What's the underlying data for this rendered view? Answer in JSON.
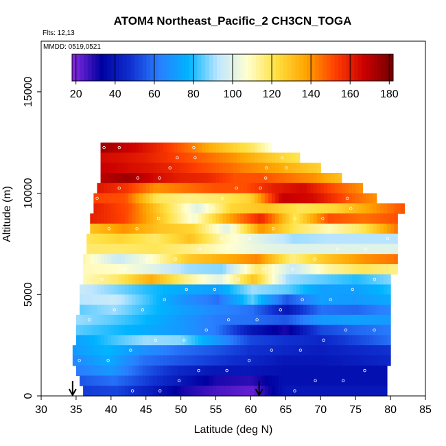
{
  "chart_data": {
    "type": "heatmap",
    "title": "ATOM4 Northeast_Pacific_2 CH3CN_TOGA",
    "flights_label": "Flts: 12,13",
    "dates_label": "MMDD: 0519,0521",
    "xlabel": "Latitude (deg N)",
    "ylabel": "Altitude (m)",
    "xlim": [
      30,
      85
    ],
    "ylim": [
      0,
      17500
    ],
    "x_ticks": [
      "30",
      "35",
      "40",
      "45",
      "50",
      "55",
      "60",
      "65",
      "70",
      "75",
      "80",
      "85"
    ],
    "y_ticks": [
      "0",
      "5000",
      "10000",
      "15000"
    ],
    "colorbar": {
      "range": [
        18,
        182
      ],
      "tick_labels": [
        "20",
        "40",
        "60",
        "80",
        "100",
        "120",
        "140",
        "160",
        "180"
      ],
      "colors": [
        "#8a2be2",
        "#0000a0",
        "#1030d0",
        "#2a7fff",
        "#00b4ff",
        "#bfe6ff",
        "#ffffd0",
        "#ffe040",
        "#ffa500",
        "#ff4000",
        "#cc0000",
        "#700000"
      ]
    },
    "arrows_lat": [
      34.5,
      61.2
    ],
    "layers": [
      {
        "alt": [
          12000,
          12500
        ],
        "lat": [
          38.5,
          63
        ],
        "values": [
          175,
          170,
          165,
          158,
          150,
          142,
          133,
          126,
          119,
          106
        ]
      },
      {
        "alt": [
          11500,
          12000
        ],
        "lat": [
          38.5,
          67
        ],
        "values": [
          165,
          163,
          160,
          155,
          150,
          145,
          140,
          133,
          126,
          120
        ]
      },
      {
        "alt": [
          11000,
          11500
        ],
        "lat": [
          38.5,
          70
        ],
        "values": [
          168,
          165,
          162,
          158,
          152,
          147,
          142,
          138,
          132,
          126
        ]
      },
      {
        "alt": [
          10500,
          11000
        ],
        "lat": [
          38.5,
          73
        ],
        "values": [
          170,
          175,
          165,
          160,
          158,
          150,
          150,
          145,
          140,
          130
        ]
      },
      {
        "alt": [
          10000,
          10500
        ],
        "lat": [
          38,
          76
        ],
        "values": [
          162,
          155,
          140,
          145,
          150,
          150,
          160,
          165,
          150,
          140
        ]
      },
      {
        "alt": [
          9500,
          10000
        ],
        "lat": [
          37.5,
          78
        ],
        "values": [
          152,
          150,
          120,
          115,
          118,
          126,
          168,
          165,
          150,
          140
        ]
      },
      {
        "alt": [
          9000,
          9500
        ],
        "lat": [
          37.5,
          82
        ],
        "values": [
          160,
          150,
          125,
          100,
          125,
          130,
          120,
          125,
          138,
          150
        ]
      },
      {
        "alt": [
          8500,
          9000
        ],
        "lat": [
          37,
          81
        ],
        "values": [
          160,
          152,
          130,
          105,
          135,
          158,
          120,
          150,
          145,
          150
        ]
      },
      {
        "alt": [
          8000,
          8500
        ],
        "lat": [
          37,
          81
        ],
        "values": [
          130,
          140,
          130,
          125,
          100,
          140,
          120,
          110,
          120,
          145
        ]
      },
      {
        "alt": [
          7500,
          8000
        ],
        "lat": [
          36.5,
          81
        ],
        "values": [
          120,
          125,
          118,
          130,
          110,
          100,
          90,
          92,
          92,
          92
        ]
      },
      {
        "alt": [
          7000,
          7500
        ],
        "lat": [
          36.5,
          81
        ],
        "values": [
          118,
          118,
          120,
          115,
          108,
          102,
          100,
          100,
          100,
          100
        ]
      },
      {
        "alt": [
          6500,
          7000
        ],
        "lat": [
          36,
          81
        ],
        "values": [
          112,
          95,
          108,
          128,
          135,
          142,
          115,
          130,
          140,
          145
        ]
      },
      {
        "alt": [
          6000,
          6500
        ],
        "lat": [
          36,
          81
        ],
        "values": [
          110,
          108,
          100,
          90,
          88,
          118,
          95,
          112,
          120,
          115
        ]
      },
      {
        "alt": [
          5500,
          6000
        ],
        "lat": [
          36,
          80
        ],
        "values": [
          110,
          118,
          135,
          115,
          100,
          130,
          90,
          85,
          80,
          88
        ]
      },
      {
        "alt": [
          5000,
          5500
        ],
        "lat": [
          35.5,
          80
        ],
        "values": [
          95,
          88,
          80,
          75,
          72,
          90,
          85,
          72,
          72,
          80
        ]
      },
      {
        "alt": [
          4500,
          5000
        ],
        "lat": [
          35.5,
          80
        ],
        "values": [
          92,
          95,
          82,
          68,
          60,
          85,
          55,
          72,
          70,
          75
        ]
      },
      {
        "alt": [
          4000,
          4500
        ],
        "lat": [
          35.5,
          80
        ],
        "values": [
          85,
          90,
          80,
          72,
          65,
          60,
          40,
          60,
          58,
          65
        ]
      },
      {
        "alt": [
          3500,
          4000
        ],
        "lat": [
          35,
          80
        ],
        "values": [
          90,
          85,
          78,
          70,
          62,
          60,
          55,
          70,
          72,
          70
        ]
      },
      {
        "alt": [
          3000,
          3500
        ],
        "lat": [
          35,
          80
        ],
        "values": [
          85,
          80,
          75,
          70,
          62,
          40,
          30,
          52,
          58,
          62
        ]
      },
      {
        "alt": [
          2500,
          3000
        ],
        "lat": [
          35,
          80
        ],
        "values": [
          72,
          82,
          90,
          88,
          70,
          52,
          48,
          45,
          52,
          60
        ]
      },
      {
        "alt": [
          2000,
          2500
        ],
        "lat": [
          34.5,
          80
        ],
        "values": [
          70,
          78,
          68,
          60,
          55,
          48,
          45,
          42,
          45,
          48
        ]
      },
      {
        "alt": [
          1500,
          2000
        ],
        "lat": [
          34.5,
          80
        ],
        "values": [
          65,
          75,
          60,
          55,
          50,
          45,
          40,
          40,
          42,
          45
        ]
      },
      {
        "alt": [
          1000,
          1500
        ],
        "lat": [
          35,
          79.5
        ],
        "values": [
          62,
          70,
          55,
          45,
          40,
          40,
          38,
          38,
          38,
          38
        ]
      },
      {
        "alt": [
          500,
          1000
        ],
        "lat": [
          35.5,
          79.5
        ],
        "values": [
          55,
          60,
          50,
          40,
          30,
          28,
          38,
          38,
          38,
          38
        ]
      },
      {
        "alt": [
          0,
          500
        ],
        "lat": [
          36,
          79.5
        ],
        "values": [
          50,
          52,
          42,
          30,
          25,
          22,
          40,
          40,
          40,
          40
        ]
      }
    ]
  }
}
